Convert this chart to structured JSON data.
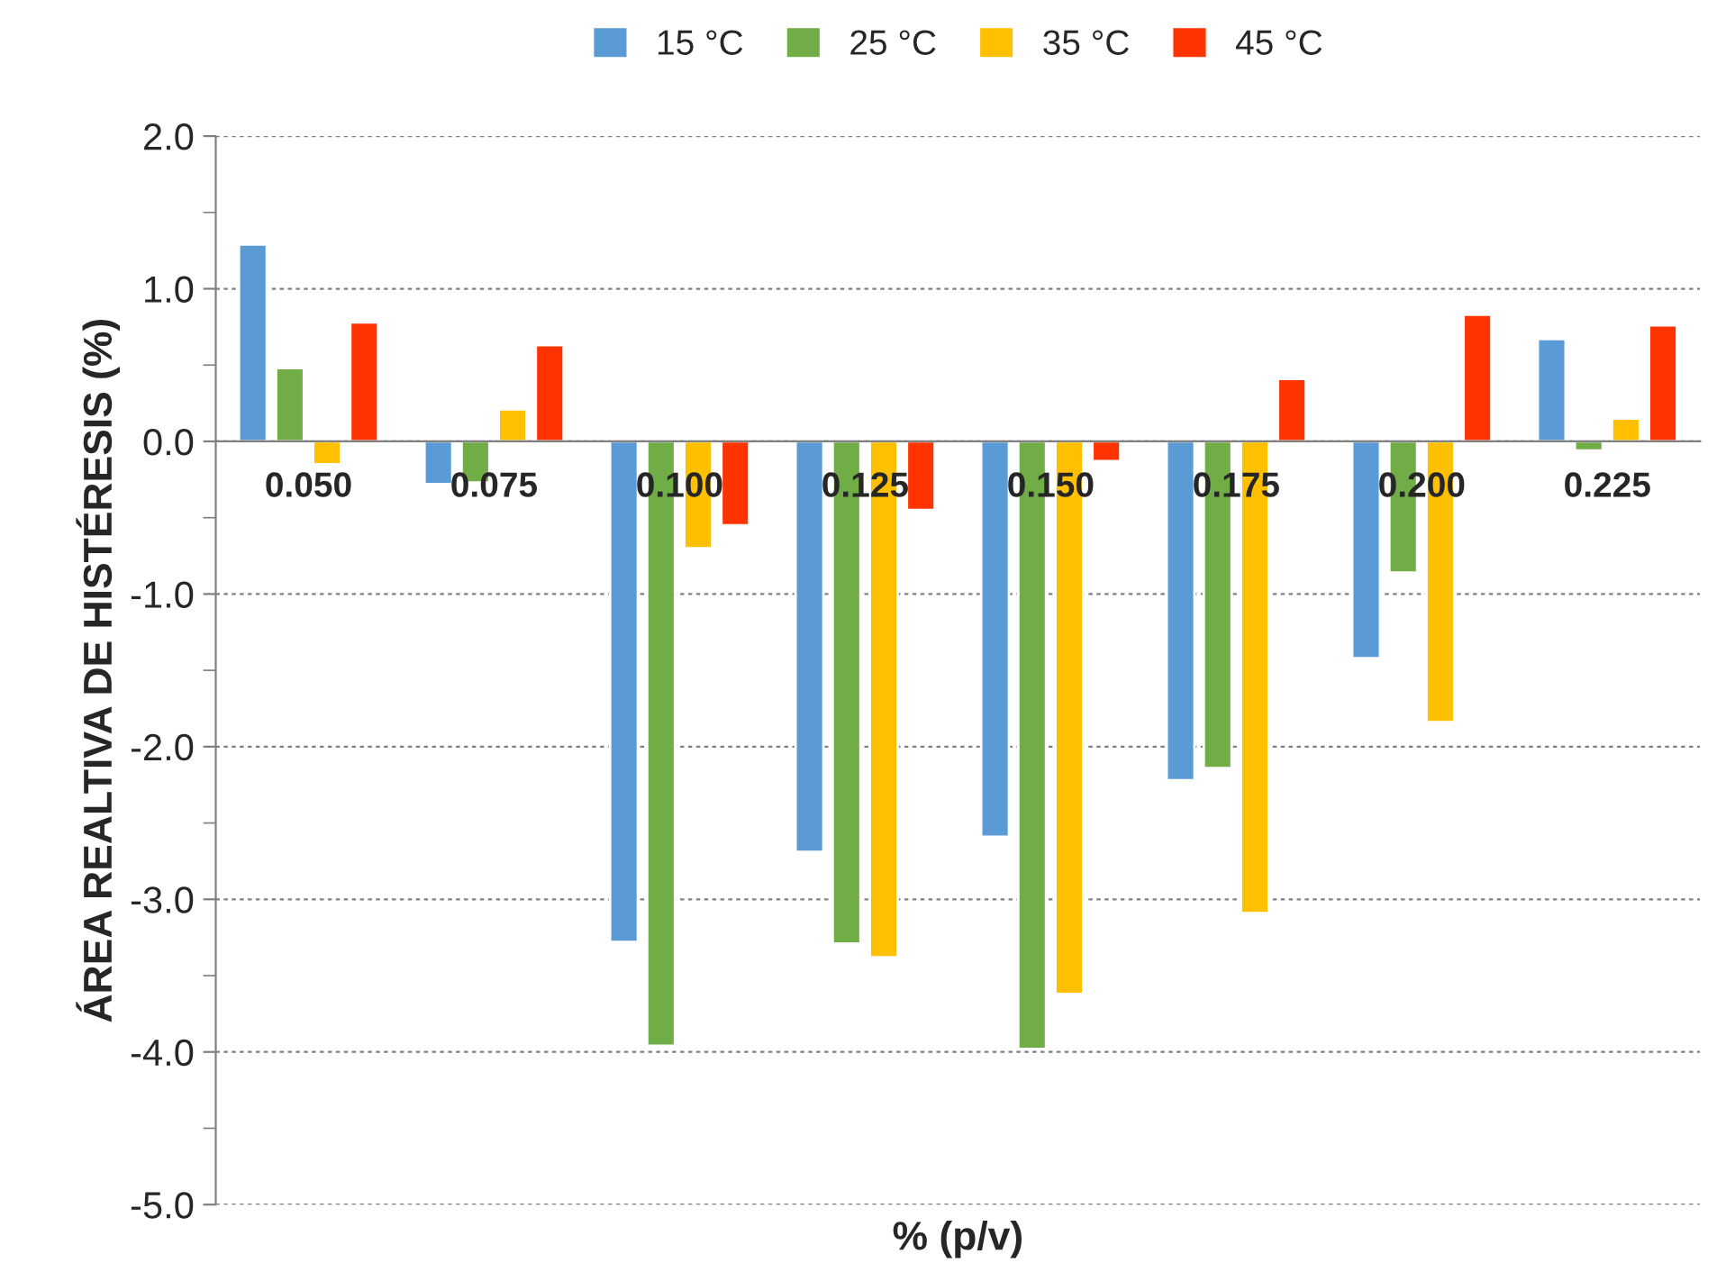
{
  "chart_data": {
    "type": "bar",
    "xlabel": "% (p/v)",
    "ylabel": "ÁREA REALTIVA DE HISTÉRESIS (%)",
    "categories": [
      "0.050",
      "0.075",
      "0.100",
      "0.125",
      "0.150",
      "0.175",
      "0.200",
      "0.225"
    ],
    "series": [
      {
        "name": "15 °C",
        "color": "#5b9bd5",
        "values": [
          1.29,
          -0.28,
          -3.28,
          -2.69,
          -2.59,
          -2.22,
          -1.42,
          0.67
        ]
      },
      {
        "name": "25 °C",
        "color": "#70ad47",
        "values": [
          0.48,
          -0.27,
          -3.96,
          -3.29,
          -3.98,
          -2.14,
          -0.86,
          -0.06
        ]
      },
      {
        "name": "35 °C",
        "color": "#ffc000",
        "values": [
          -0.15,
          0.21,
          -0.7,
          -3.38,
          -3.62,
          -3.09,
          -1.84,
          0.15
        ]
      },
      {
        "name": "45 °C",
        "color": "#ff3300",
        "values": [
          0.78,
          0.63,
          -0.55,
          -0.45,
          -0.13,
          0.41,
          0.83,
          0.76
        ]
      }
    ],
    "ylim": [
      -5.0,
      2.0
    ],
    "yticks": [
      {
        "value": -5.0,
        "label": "-5.0"
      },
      {
        "value": -4.0,
        "label": "-4.0"
      },
      {
        "value": -3.0,
        "label": "-3.0"
      },
      {
        "value": -2.0,
        "label": "-2.0"
      },
      {
        "value": -1.0,
        "label": "-1.0"
      },
      {
        "value": 0.0,
        "label": "0.0"
      },
      {
        "value": 1.0,
        "label": "1.0"
      },
      {
        "value": 2.0,
        "label": "2.0"
      }
    ],
    "grid": "y",
    "legend": "top"
  }
}
